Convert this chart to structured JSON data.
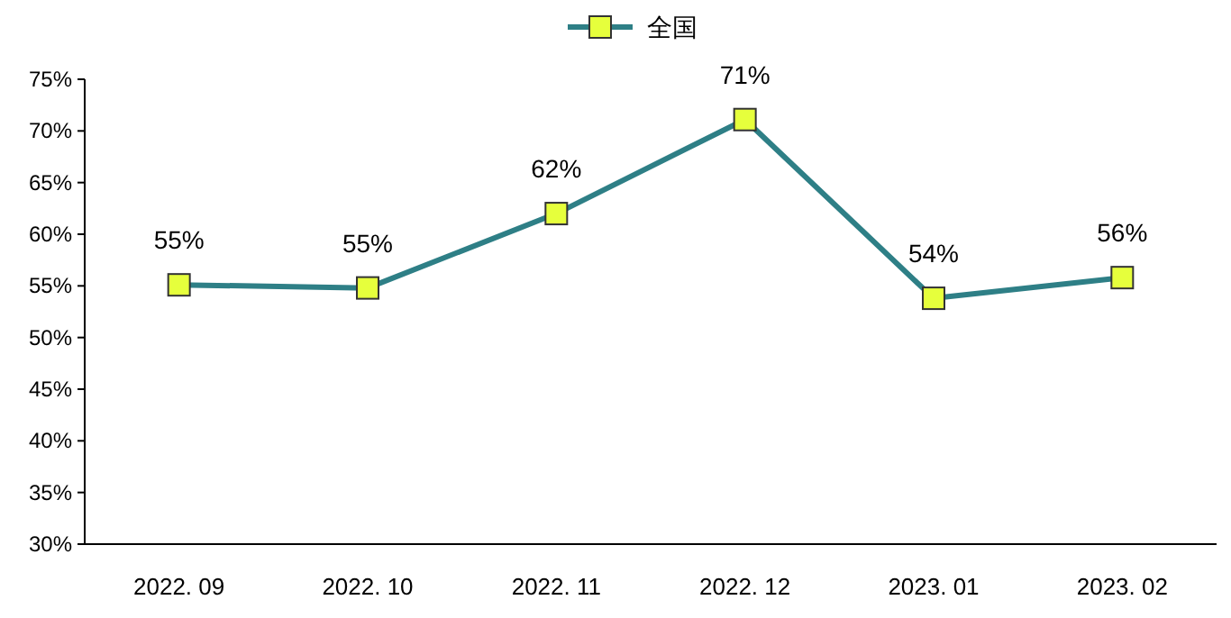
{
  "chart_data": {
    "type": "line",
    "categories": [
      "2022. 09",
      "2022. 10",
      "2022. 11",
      "2022. 12",
      "2023. 01",
      "2023. 02"
    ],
    "series": [
      {
        "name": "全国",
        "color": "#2e7f86",
        "values": [
          55.1,
          54.8,
          62,
          71.1,
          53.8,
          55.8
        ],
        "value_labels": [
          "55%",
          "55%",
          "62%",
          "71%",
          "54%",
          "56%"
        ]
      }
    ],
    "ylim": [
      30,
      75
    ],
    "yticks": [
      {
        "value": 30,
        "label": "30%"
      },
      {
        "value": 35,
        "label": "35%"
      },
      {
        "value": 40,
        "label": "40%"
      },
      {
        "value": 45,
        "label": "45%"
      },
      {
        "value": 50,
        "label": "50%"
      },
      {
        "value": 55,
        "label": "55%"
      },
      {
        "value": 60,
        "label": "60%"
      },
      {
        "value": 65,
        "label": "65%"
      },
      {
        "value": 70,
        "label": "70%"
      },
      {
        "value": 75,
        "label": "75%"
      }
    ],
    "marker": "square",
    "legend": "top",
    "grid": false
  }
}
